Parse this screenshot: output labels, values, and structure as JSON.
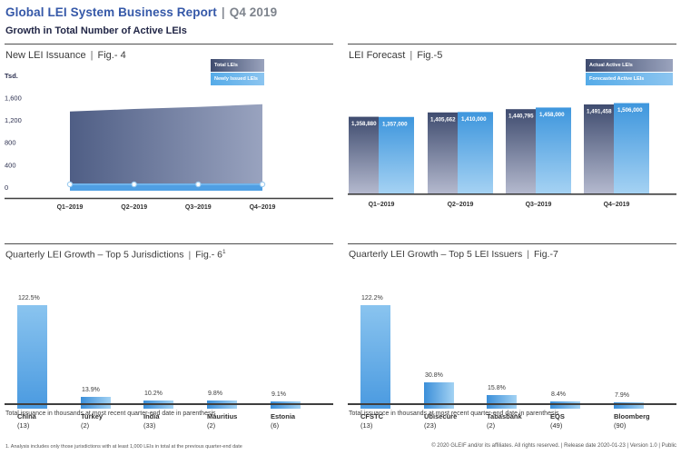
{
  "header": {
    "title": "Global LEI System Business Report",
    "sep": "|",
    "period": "Q4 2019",
    "subtitle": "Growth in Total Number of Active LEIs"
  },
  "colors": {
    "title_blue": "#3558a8",
    "period_gray": "#7d838c",
    "subtitle_navy": "#222747",
    "area_gradient_left": "#4f5e85",
    "area_gradient_right": "#99a3bf",
    "dark_bar_top": "#3f4c6f",
    "dark_bar_bottom": "#b4b9ce",
    "light_bar_top": "#3e96dd",
    "light_bar_bottom": "#a5d2f3",
    "issuance_band_blue": "#4f9fe3",
    "growth_bar_blue": "#4a9ae0",
    "axis_dark": "#3f3f3f"
  },
  "panels": {
    "fig4": {
      "title": "New LEI Issuance",
      "sep": "|",
      "fig": "Fig.- 4",
      "fig_sup": ""
    },
    "fig5": {
      "title": "LEI Forecast",
      "sep": "|",
      "fig": "Fig.-5",
      "fig_sup": ""
    },
    "fig6": {
      "title": "Quarterly LEI Growth – Top 5 Jurisdictions",
      "sep": "|",
      "fig": "Fig.- 6",
      "fig_sup": "1",
      "note": "Total issuance in thousands at most recent quarter-end date in parenthesis"
    },
    "fig7": {
      "title": "Quarterly LEI Growth – Top 5 LEI Issuers",
      "sep": "|",
      "fig": "Fig.-7",
      "fig_sup": "",
      "note": "Total issuance in thousands at most recent quarter-end date in parenthesis"
    }
  },
  "chart_data": [
    {
      "id": "fig4",
      "type": "area",
      "title": "New LEI Issuance | Fig.- 4",
      "ylabel": "Tsd.",
      "categories": [
        "Q1–2019",
        "Q2–2019",
        "Q3–2019",
        "Q4–2019"
      ],
      "yticks": [
        {
          "label": "1,600",
          "value": 1600
        },
        {
          "label": "1,200",
          "value": 1200
        },
        {
          "label": "800",
          "value": 800
        },
        {
          "label": "400",
          "value": 400
        },
        {
          "label": "0",
          "value": 0
        }
      ],
      "ylim": [
        0,
        1600
      ],
      "legend_position": "top-right",
      "series": [
        {
          "name": "Total LEIs",
          "style": "dark",
          "values": [
            1358.88,
            1405.662,
            1440.795,
            1491.458
          ]
        },
        {
          "name": "Newly Issued LEIs",
          "style": "light",
          "values": [
            50,
            50,
            50,
            50
          ]
        }
      ]
    },
    {
      "id": "fig5",
      "type": "bar",
      "title": "LEI Forecast | Fig.-5",
      "categories": [
        "Q1–2019",
        "Q2–2019",
        "Q3–2019",
        "Q4–2019"
      ],
      "ylim": [
        535000,
        1550000
      ],
      "legend_position": "top-right",
      "series": [
        {
          "name": "Actual Active LEIs",
          "style": "dark",
          "values": [
            1358880,
            1405662,
            1440795,
            1491458
          ],
          "labels": [
            "1,358,880",
            "1,405,662",
            "1,440,795",
            "1,491,458"
          ]
        },
        {
          "name": "Forecasted Active LEIs",
          "style": "light",
          "values": [
            1357000,
            1410000,
            1458000,
            1506000
          ],
          "labels": [
            "1,357,000",
            "1,410,000",
            "1,458,000",
            "1,506,000"
          ]
        }
      ]
    },
    {
      "id": "fig6",
      "type": "bar",
      "title": "Quarterly LEI Growth – Top 5 Jurisdictions | Fig.- 6",
      "categories": [
        "China",
        "Turkey",
        "India",
        "Mauritius",
        "Estonia"
      ],
      "category_counts": [
        "(13)",
        "(2)",
        "(33)",
        "(2)",
        "(6)"
      ],
      "values": [
        122.5,
        13.9,
        10.2,
        9.8,
        9.1
      ],
      "value_labels": [
        "122.5%",
        "13.9%",
        "10.2%",
        "9.8%",
        "9.1%"
      ],
      "ylim": [
        0,
        130
      ],
      "note": "Total issuance in thousands at most recent quarter-end date in parenthesis"
    },
    {
      "id": "fig7",
      "type": "bar",
      "title": "Quarterly LEI Growth – Top 5 LEI Issuers | Fig.-7",
      "categories": [
        "CFSTC",
        "Ubisecure",
        "Tabasbank",
        "EQS",
        "Bloomberg"
      ],
      "category_counts": [
        "(13)",
        "(23)",
        "(2)",
        "(49)",
        "(90)"
      ],
      "values": [
        122.2,
        30.8,
        15.8,
        8.4,
        7.9
      ],
      "value_labels": [
        "122.2%",
        "30.8%",
        "15.8%",
        "8.4%",
        "7.9%"
      ],
      "ylim": [
        0,
        130
      ],
      "note": "Total issuance in thousands at most recent quarter-end date in parenthesis"
    }
  ],
  "footer": {
    "footnote": "1. Analysis includes only those jurisdictions with at least 1,000 LEIs in total at the previous quarter-end date",
    "copyright": "© 2020 GLEIF and/or its affiliates. All rights reserved.  |  Release date 2020-01-23  |  Version 1.0  |  Public"
  }
}
